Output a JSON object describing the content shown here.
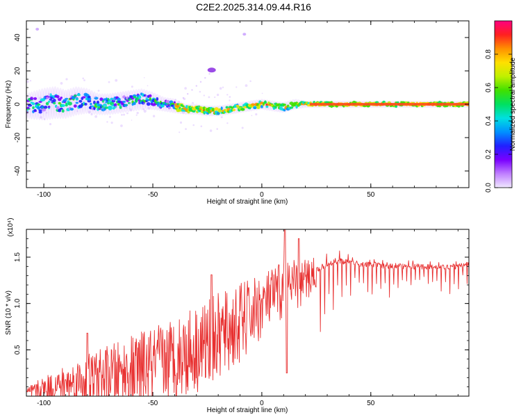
{
  "title": "C2E2.2025.314.09.44.R16",
  "chart_data": [
    {
      "type": "heatmap",
      "name": "spectrogram",
      "xlabel": "Height of straight line (km)",
      "ylabel": "Frequency (Hz)",
      "xlim": [
        -108,
        95
      ],
      "ylim": [
        -50,
        50
      ],
      "xticks": [
        -100,
        -50,
        0,
        50
      ],
      "yticks": [
        -40,
        -20,
        0,
        20,
        40
      ],
      "grid": false,
      "trace": {
        "x": [
          -108,
          -100,
          -95,
          -90,
          -85,
          -80,
          -75,
          -70,
          -65,
          -60,
          -55,
          -50,
          -45,
          -40,
          -35,
          -30,
          -25,
          -20,
          -15,
          -10,
          -5,
          0,
          5,
          10,
          15,
          20,
          25,
          30,
          40,
          50,
          60,
          70,
          80,
          90,
          95
        ],
        "freq": [
          -1,
          0,
          1,
          0,
          2,
          2,
          0,
          0,
          1,
          2,
          3,
          2,
          0,
          -1,
          -3,
          -3,
          -4,
          -4,
          -3,
          -2,
          -1,
          0,
          -1,
          -2,
          0,
          0,
          0,
          0,
          0,
          0,
          0,
          0,
          0,
          0,
          0
        ],
        "spread": [
          7,
          9,
          9,
          8,
          8,
          7,
          6,
          6,
          6,
          6,
          6,
          5,
          4,
          4,
          3,
          3,
          3,
          3,
          3,
          3,
          3,
          3,
          3,
          3,
          3,
          2,
          2,
          2,
          2,
          2,
          2,
          2,
          2,
          2,
          2
        ]
      },
      "side_features": [
        {
          "x": -23,
          "freq": 20.5
        },
        {
          "x": -8,
          "freq": 42
        },
        {
          "x": -103,
          "freq": 45
        }
      ],
      "colorbar": {
        "label": "Normalized spectral amplitude",
        "range": [
          0,
          1
        ],
        "ticks": [
          0.0,
          0.2,
          0.4,
          0.6,
          0.8
        ],
        "tick_labels": [
          "0.0",
          "0.2",
          "0.4",
          "0.6",
          "0.8"
        ],
        "colors": [
          "#f0e8ff",
          "#c080ff",
          "#7a00ff",
          "#2020ff",
          "#0090ff",
          "#00e0e0",
          "#00e060",
          "#40e000",
          "#c0f000",
          "#ffe000",
          "#ff9000",
          "#ff2020",
          "#ff0080"
        ]
      }
    },
    {
      "type": "line",
      "name": "snr",
      "xlabel": "Height of straight line (km)",
      "ylabel": "SNR (10 * v/v)",
      "y_multiplier": "(x10⁴)",
      "xlim": [
        -108,
        95
      ],
      "ylim": [
        0,
        1.8
      ],
      "xticks": [
        -100,
        -50,
        0,
        50
      ],
      "yticks": [
        0.5,
        1.0,
        1.5
      ],
      "ytick_labels": [
        "0.5",
        "1.0",
        "1.5"
      ],
      "color": "#e83030",
      "envelope": {
        "x": [
          -108,
          -100,
          -90,
          -80,
          -70,
          -60,
          -50,
          -40,
          -30,
          -20,
          -10,
          -5,
          0,
          5,
          10,
          15,
          20,
          25,
          30,
          35,
          40,
          50,
          60,
          70,
          80,
          90,
          95
        ],
        "mean": [
          0.03,
          0.08,
          0.13,
          0.18,
          0.22,
          0.27,
          0.33,
          0.42,
          0.52,
          0.63,
          0.78,
          0.88,
          0.98,
          1.08,
          1.15,
          1.18,
          1.24,
          1.36,
          1.42,
          1.46,
          1.44,
          1.42,
          1.4,
          1.4,
          1.39,
          1.4,
          1.43
        ],
        "amplitude": [
          0.06,
          0.13,
          0.2,
          0.28,
          0.33,
          0.38,
          0.42,
          0.45,
          0.48,
          0.48,
          0.45,
          0.4,
          0.35,
          0.3,
          0.35,
          0.3,
          0.25,
          0.2,
          0.18,
          0.15,
          0.13,
          0.1,
          0.09,
          0.08,
          0.08,
          0.08,
          0.08
        ]
      },
      "features": [
        {
          "x": 10.5,
          "y": 1.8,
          "kind": "peak"
        },
        {
          "x": 11.5,
          "y": 0.25,
          "kind": "trough"
        },
        {
          "x": 17,
          "y": 1.7,
          "kind": "peak"
        },
        {
          "x": -80,
          "y": 0.68,
          "kind": "peak"
        },
        {
          "x": -23,
          "y": 1.31,
          "kind": "peak"
        }
      ]
    }
  ]
}
